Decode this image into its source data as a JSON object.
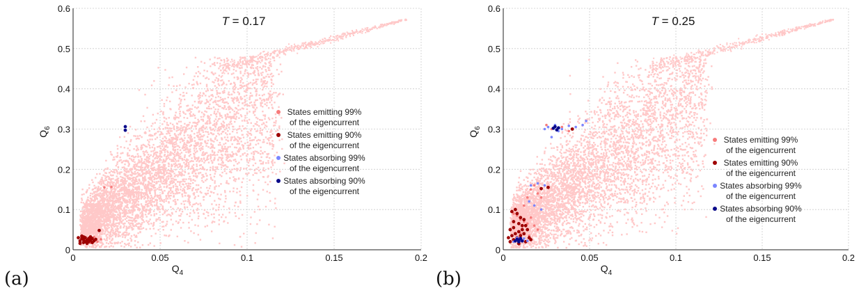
{
  "colors": {
    "background_cloud": "#ffc8c8",
    "emit99": "#f77b7b",
    "emit90": "#9e0000",
    "absorb99": "#7b86ff",
    "absorb90": "#0a0a8a",
    "grid": "#cccccc",
    "axis": "#222222"
  },
  "chart_data": [
    {
      "type": "scatter",
      "panel_label": "(a)",
      "annotation": "T = 0.17",
      "annotation_var": "T",
      "annotation_value": "= 0.17",
      "xlabel": "Q",
      "xlabel_sub": "4",
      "ylabel": "Q",
      "ylabel_sub": "6",
      "xlim": [
        0,
        0.2
      ],
      "ylim": [
        0,
        0.6
      ],
      "xticks": [
        "0",
        "0.05",
        "0.1",
        "0.15",
        "0.2"
      ],
      "yticks": [
        "0",
        "0.1",
        "0.2",
        "0.3",
        "0.4",
        "0.5",
        "0.6"
      ],
      "grid": true,
      "legend_position": "right",
      "legend": [
        {
          "key": "emit99",
          "line1": "States emitting 99%",
          "line2": "of the eigencurrent"
        },
        {
          "key": "emit90",
          "line1": "States emitting 90%",
          "line2": "of the eigencurrent"
        },
        {
          "key": "absorb99",
          "line1": "States absorbing 99%",
          "line2": "of the eigencurrent"
        },
        {
          "key": "absorb90",
          "line1": "States absorbing 90%",
          "line2": "of the eigencurrent"
        }
      ],
      "series": [
        {
          "key": "emit99",
          "points": [
            [
              0.012,
              0.032
            ],
            [
              0.016,
              0.026
            ],
            [
              0.018,
              0.155
            ],
            [
              0.022,
              0.156
            ],
            [
              0.01,
              0.017
            ],
            [
              0.014,
              0.02
            ]
          ]
        },
        {
          "key": "emit90",
          "points": [
            [
              0.003,
              0.03
            ],
            [
              0.004,
              0.022
            ],
            [
              0.005,
              0.028
            ],
            [
              0.006,
              0.018
            ],
            [
              0.006,
              0.025
            ],
            [
              0.007,
              0.03
            ],
            [
              0.007,
              0.02
            ],
            [
              0.008,
              0.024
            ],
            [
              0.008,
              0.016
            ],
            [
              0.009,
              0.028
            ],
            [
              0.009,
              0.02
            ],
            [
              0.01,
              0.024
            ],
            [
              0.01,
              0.032
            ],
            [
              0.011,
              0.018
            ],
            [
              0.011,
              0.028
            ],
            [
              0.012,
              0.022
            ],
            [
              0.013,
              0.026
            ],
            [
              0.005,
              0.034
            ],
            [
              0.004,
              0.016
            ],
            [
              0.006,
              0.032
            ],
            [
              0.015,
              0.048
            ]
          ]
        },
        {
          "key": "absorb99",
          "points": []
        },
        {
          "key": "absorb90",
          "points": [
            [
              0.03,
              0.306
            ],
            [
              0.03,
              0.297
            ]
          ]
        }
      ]
    },
    {
      "type": "scatter",
      "panel_label": "(b)",
      "annotation": "T = 0.25",
      "annotation_var": "T",
      "annotation_value": "= 0.25",
      "xlabel": "Q",
      "xlabel_sub": "4",
      "ylabel": "Q",
      "ylabel_sub": "6",
      "xlim": [
        0,
        0.2
      ],
      "ylim": [
        0,
        0.6
      ],
      "xticks": [
        "0",
        "0.05",
        "0.1",
        "0.15",
        "0.2"
      ],
      "yticks": [
        "0",
        "0.1",
        "0.2",
        "0.3",
        "0.4",
        "0.5",
        "0.6"
      ],
      "grid": true,
      "legend_position": "lower right",
      "legend": [
        {
          "key": "emit99",
          "line1": "States emitting 99%",
          "line2": "of the eigencurrent"
        },
        {
          "key": "emit90",
          "line1": "States emitting 90%",
          "line2": "of the eigencurrent"
        },
        {
          "key": "absorb99",
          "line1": "States absorbing 99%",
          "line2": "of the eigencurrent"
        },
        {
          "key": "absorb90",
          "line1": "States absorbing 90%",
          "line2": "of the eigencurrent"
        }
      ],
      "series": [
        {
          "key": "emit99",
          "points": [
            [
              0.006,
              0.09
            ],
            [
              0.008,
              0.085
            ],
            [
              0.01,
              0.075
            ],
            [
              0.012,
              0.07
            ],
            [
              0.014,
              0.065
            ],
            [
              0.012,
              0.11
            ],
            [
              0.014,
              0.13
            ],
            [
              0.016,
              0.15
            ],
            [
              0.018,
              0.16
            ],
            [
              0.02,
              0.14
            ],
            [
              0.022,
              0.13
            ],
            [
              0.016,
              0.08
            ],
            [
              0.018,
              0.06
            ],
            [
              0.02,
              0.05
            ],
            [
              0.01,
              0.04
            ],
            [
              0.015,
              0.035
            ],
            [
              0.028,
              0.3
            ],
            [
              0.034,
              0.305
            ],
            [
              0.038,
              0.295
            ],
            [
              0.025,
              0.31
            ]
          ]
        },
        {
          "key": "emit90",
          "points": [
            [
              0.003,
              0.03
            ],
            [
              0.004,
              0.02
            ],
            [
              0.005,
              0.035
            ],
            [
              0.006,
              0.025
            ],
            [
              0.007,
              0.04
            ],
            [
              0.008,
              0.03
            ],
            [
              0.009,
              0.045
            ],
            [
              0.01,
              0.035
            ],
            [
              0.011,
              0.05
            ],
            [
              0.012,
              0.04
            ],
            [
              0.013,
              0.06
            ],
            [
              0.014,
              0.05
            ],
            [
              0.005,
              0.095
            ],
            [
              0.007,
              0.1
            ],
            [
              0.008,
              0.09
            ],
            [
              0.006,
              0.07
            ],
            [
              0.01,
              0.08
            ],
            [
              0.012,
              0.075
            ],
            [
              0.009,
              0.015
            ],
            [
              0.013,
              0.02
            ],
            [
              0.015,
              0.03
            ],
            [
              0.016,
              0.025
            ],
            [
              0.004,
              0.05
            ],
            [
              0.006,
              0.055
            ],
            [
              0.022,
              0.152
            ],
            [
              0.026,
              0.155
            ],
            [
              0.04,
              0.3
            ],
            [
              0.011,
              0.06
            ],
            [
              0.009,
              0.065
            ]
          ]
        },
        {
          "key": "absorb99",
          "points": [
            [
              0.006,
              0.02
            ],
            [
              0.008,
              0.03
            ],
            [
              0.01,
              0.025
            ],
            [
              0.012,
              0.028
            ],
            [
              0.014,
              0.022
            ],
            [
              0.016,
              0.16
            ],
            [
              0.02,
              0.165
            ],
            [
              0.024,
              0.16
            ],
            [
              0.026,
              0.305
            ],
            [
              0.03,
              0.31
            ],
            [
              0.034,
              0.3
            ],
            [
              0.038,
              0.308
            ],
            [
              0.042,
              0.305
            ],
            [
              0.046,
              0.31
            ],
            [
              0.028,
              0.28
            ],
            [
              0.032,
              0.295
            ],
            [
              0.024,
              0.3
            ],
            [
              0.015,
              0.12
            ],
            [
              0.018,
              0.11
            ],
            [
              0.022,
              0.1
            ],
            [
              0.048,
              0.32
            ]
          ]
        },
        {
          "key": "absorb90",
          "points": [
            [
              0.007,
              0.022
            ],
            [
              0.008,
              0.026
            ],
            [
              0.009,
              0.02
            ],
            [
              0.01,
              0.028
            ],
            [
              0.009,
              0.024
            ],
            [
              0.011,
              0.022
            ],
            [
              0.029,
              0.302
            ],
            [
              0.031,
              0.298
            ],
            [
              0.032,
              0.303
            ],
            [
              0.03,
              0.306
            ]
          ]
        }
      ]
    }
  ]
}
